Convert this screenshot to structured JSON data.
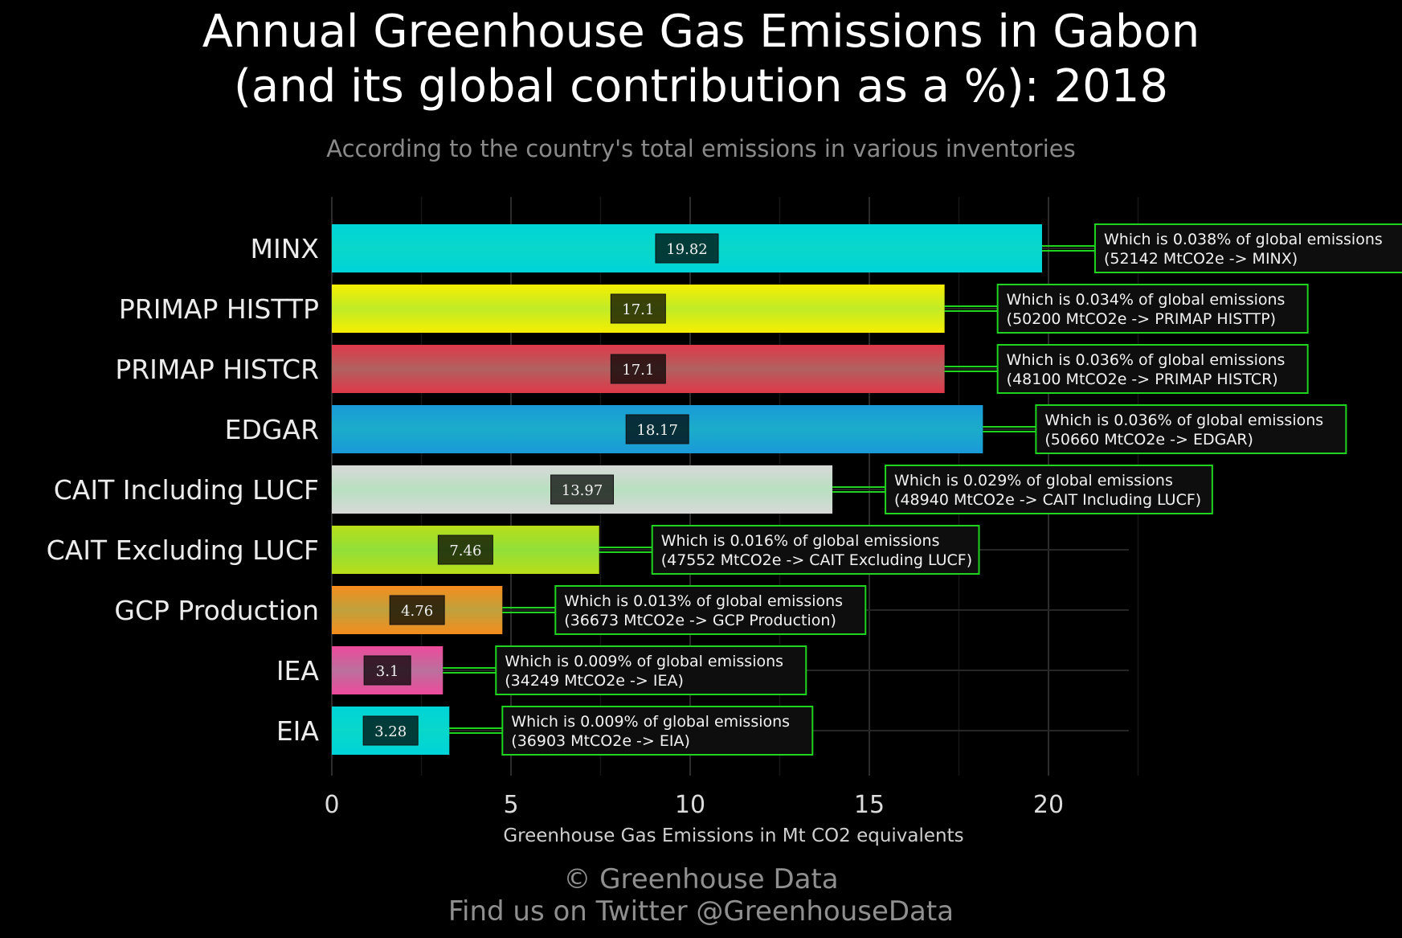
{
  "title_line1": "Annual Greenhouse Gas Emissions in Gabon",
  "title_line2": "(and its global contribution as a %): 2018",
  "subtitle": "According to the country's total emissions in various inventories",
  "footer_line1": "© Greenhouse Data",
  "footer_line2": "Find us on Twitter @GreenhouseData",
  "chart_data": {
    "type": "bar",
    "orientation": "horizontal",
    "xlabel": "Greenhouse Gas Emissions in Mt CO2 equivalents",
    "xlim": [
      0,
      22.2
    ],
    "xticks": [
      0,
      5,
      10,
      15,
      20
    ],
    "grid": true,
    "categories": [
      "MINX",
      "PRIMAP HISTTP",
      "PRIMAP HISTCR",
      "EDGAR",
      "CAIT Including LUCF",
      "CAIT Excluding LUCF",
      "GCP Production",
      "IEA",
      "EIA"
    ],
    "values": [
      19.82,
      17.1,
      17.1,
      18.17,
      13.97,
      7.46,
      4.76,
      3.1,
      3.28
    ],
    "value_labels": [
      "19.82",
      "17.1",
      "17.1",
      "18.17",
      "13.97",
      "7.46",
      "4.76",
      "3.1",
      "3.28"
    ],
    "colors": [
      "#00d4d8",
      "#f6ee00",
      "#e0384a",
      "#1a9ad8",
      "#d8d8d8",
      "#b8de18",
      "#f58c1c",
      "#ee4a9c",
      "#00d4d8"
    ],
    "annotations": [
      {
        "line1": "Which is 0.038% of global emissions",
        "line2": "(52142 MtCO2e -> MINX)"
      },
      {
        "line1": "Which is 0.034% of global emissions",
        "line2": "(50200 MtCO2e -> PRIMAP HISTTP)"
      },
      {
        "line1": "Which is 0.036% of global emissions",
        "line2": "(48100 MtCO2e -> PRIMAP HISTCR)"
      },
      {
        "line1": "Which is 0.036% of global emissions",
        "line2": "(50660 MtCO2e -> EDGAR)"
      },
      {
        "line1": "Which is 0.029% of global emissions",
        "line2": "(48940 MtCO2e -> CAIT Including LUCF)"
      },
      {
        "line1": "Which is 0.016% of global emissions",
        "line2": "(47552 MtCO2e -> CAIT Excluding LUCF)"
      },
      {
        "line1": "Which is 0.013% of global emissions",
        "line2": "(36673 MtCO2e -> GCP Production)"
      },
      {
        "line1": "Which is 0.009% of global emissions",
        "line2": "(34249 MtCO2e -> IEA)"
      },
      {
        "line1": "Which is 0.009% of global emissions",
        "line2": "(36903 MtCO2e -> EIA)"
      }
    ]
  }
}
